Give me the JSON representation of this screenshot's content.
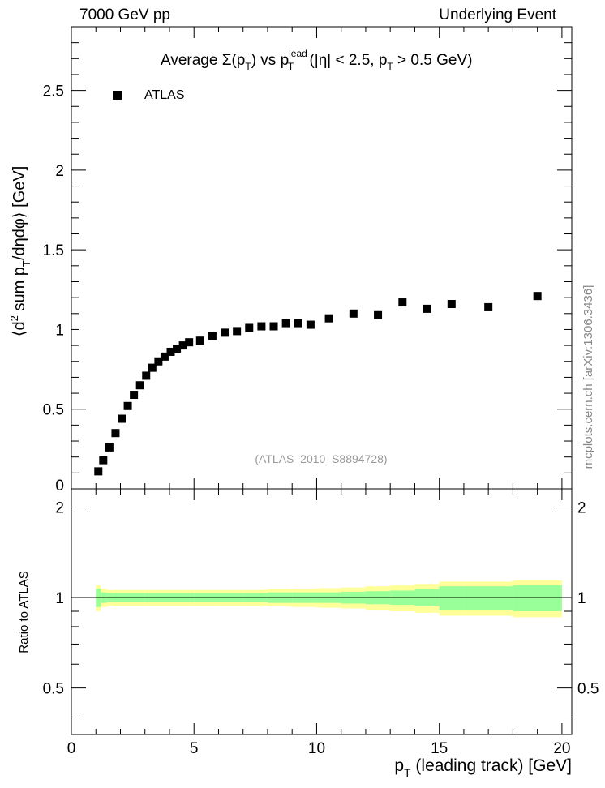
{
  "header": {
    "left": "7000 GeV pp",
    "right": "Underlying Event",
    "side_credit": "mcplots.cern.ch [arXiv:1306.3436]"
  },
  "chart_data": {
    "type": "scatter",
    "title": {
      "prefix": "Average ",
      "sigma": "Σ(p",
      "sub_t1": "T",
      "mid": ") vs p",
      "sup_lead": "lead",
      "sub_t2": "T",
      "cut1": " (|η| < 2.5, p",
      "sub_t3": "T",
      "cut2": " > 0.5 GeV)"
    },
    "analysis_id": "(ATLAS_2010_S8894728)",
    "ylabel": {
      "pre": "⟨d",
      "sup2": "2",
      "mid": " sum p",
      "subT": "T",
      "post": "/dηdφ⟩ [GeV]"
    },
    "xlabel": {
      "p": "p",
      "subT": "T",
      "rest": " (leading track) [GeV]"
    },
    "ratio_ylabel": "Ratio to ATLAS",
    "legend": [
      {
        "label": "ATLAS",
        "marker": "square",
        "color": "#000000"
      }
    ],
    "legend_position": "top-left",
    "xlim": [
      0,
      20.4
    ],
    "ylim": [
      0,
      2.9
    ],
    "ratio_ylim": [
      0.35,
      2.3
    ],
    "x_ticks": [
      "0",
      "5",
      "10",
      "15",
      "20"
    ],
    "y_ticks": [
      "0",
      "0.5",
      "1",
      "1.5",
      "2",
      "2.5"
    ],
    "ratio_ticks": [
      "0.5",
      "1",
      "2"
    ],
    "series": [
      {
        "name": "ATLAS",
        "x": [
          1.1,
          1.3,
          1.55,
          1.8,
          2.05,
          2.3,
          2.55,
          2.8,
          3.05,
          3.3,
          3.55,
          3.8,
          4.05,
          4.3,
          4.55,
          4.8,
          5.25,
          5.75,
          6.25,
          6.75,
          7.25,
          7.75,
          8.25,
          8.75,
          9.25,
          9.75,
          10.5,
          11.5,
          12.5,
          13.5,
          14.5,
          15.5,
          17.0,
          19.0
        ],
        "y": [
          0.11,
          0.18,
          0.26,
          0.35,
          0.44,
          0.52,
          0.59,
          0.65,
          0.71,
          0.76,
          0.8,
          0.83,
          0.86,
          0.88,
          0.9,
          0.92,
          0.93,
          0.96,
          0.98,
          0.99,
          1.01,
          1.02,
          1.02,
          1.04,
          1.04,
          1.03,
          1.07,
          1.1,
          1.09,
          1.17,
          1.13,
          1.16,
          1.14,
          1.21
        ]
      }
    ],
    "ratio_bands": {
      "x_edges": [
        1.0,
        1.2,
        1.45,
        1.7,
        2.0,
        3.0,
        4.0,
        5.0,
        6.0,
        7.0,
        8.0,
        9.0,
        10.0,
        11.0,
        12.0,
        13.0,
        14.0,
        15.0,
        16.0,
        18.0,
        20.0
      ],
      "inner": [
        0.07,
        0.04,
        0.035,
        0.035,
        0.035,
        0.035,
        0.035,
        0.035,
        0.035,
        0.035,
        0.04,
        0.04,
        0.04,
        0.045,
        0.05,
        0.055,
        0.065,
        0.09,
        0.09,
        0.1
      ],
      "outer": [
        0.1,
        0.07,
        0.06,
        0.06,
        0.06,
        0.06,
        0.06,
        0.06,
        0.06,
        0.06,
        0.065,
        0.07,
        0.075,
        0.08,
        0.09,
        0.1,
        0.11,
        0.13,
        0.13,
        0.14
      ],
      "inner_color": "#99ff99",
      "outer_color": "#ffff99"
    }
  }
}
